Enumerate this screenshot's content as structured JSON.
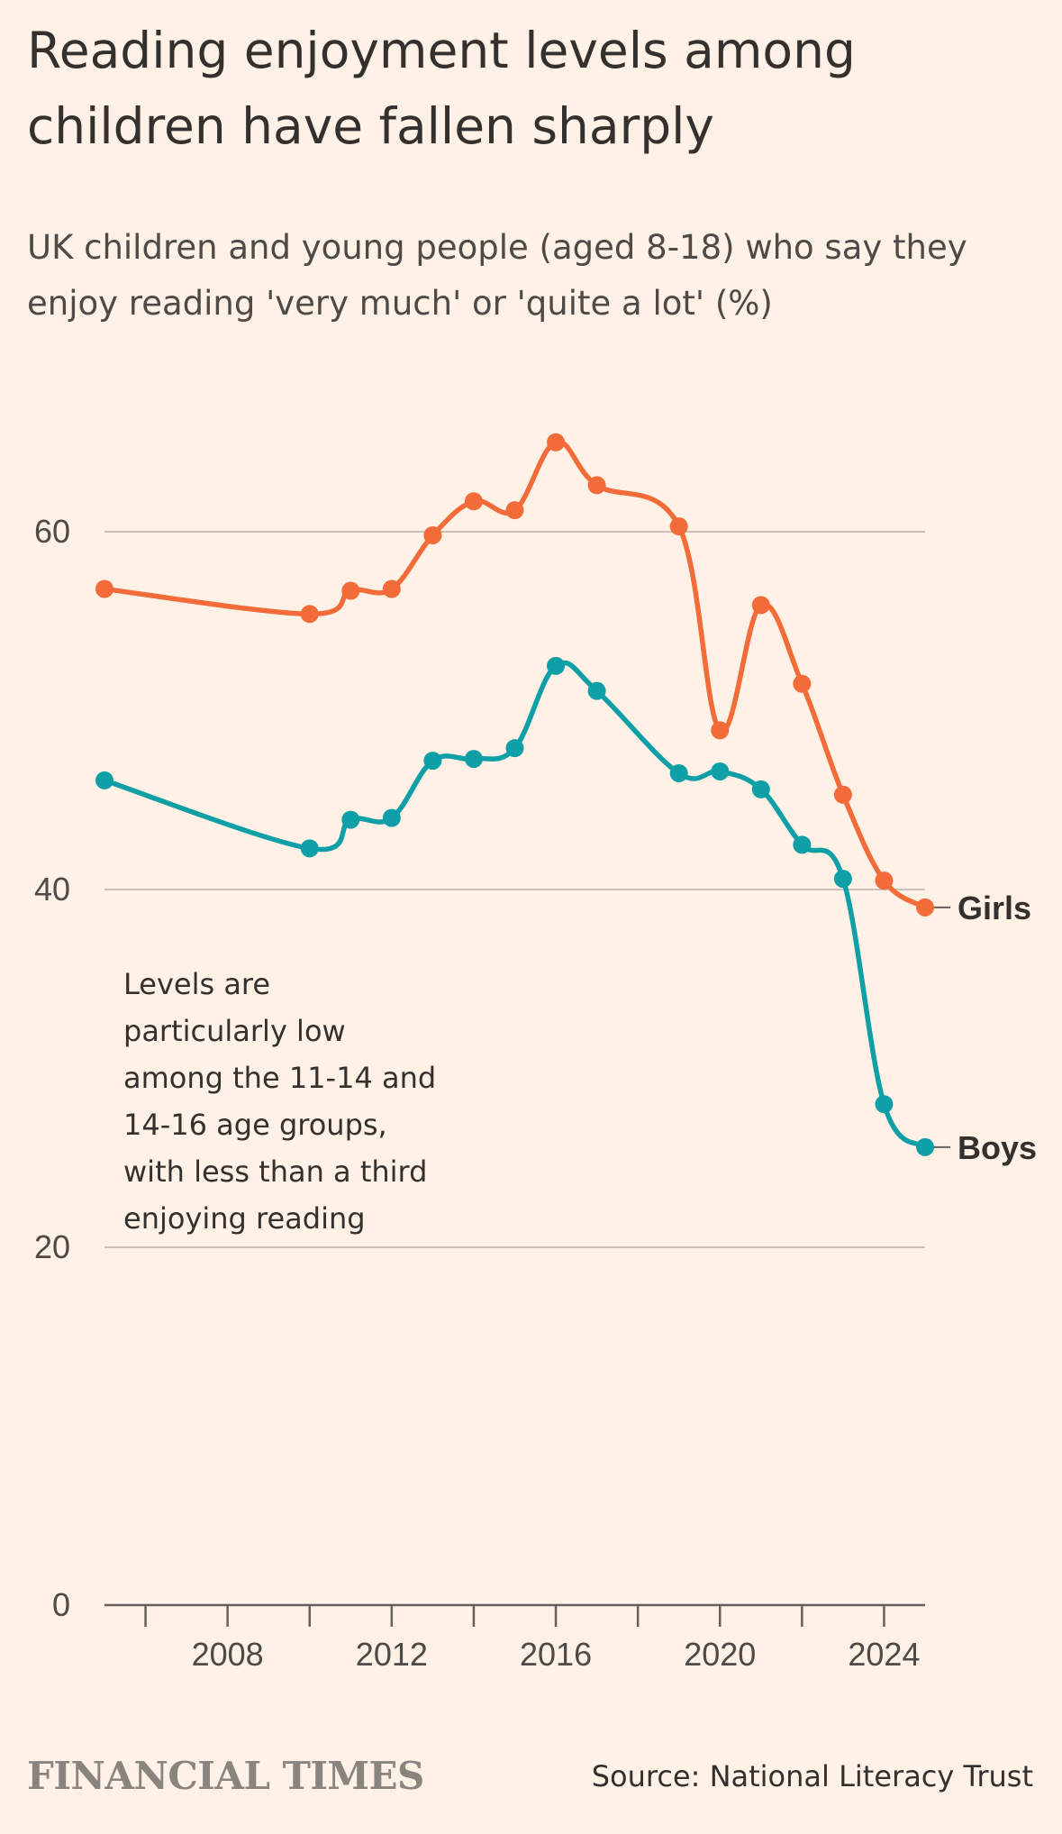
{
  "header": {
    "title": "Reading enjoyment levels among children have fallen sharply",
    "subtitle": "UK children and young people (aged 8-18) who say they enjoy reading 'very much' or 'quite a lot' (%)"
  },
  "annotation": {
    "lines": [
      "Levels are",
      "particularly low",
      "among the 11-14 and",
      "14-16 age groups,",
      "with less than a third",
      "enjoying reading"
    ]
  },
  "footer": {
    "brand": "FINANCIAL TIMES",
    "source": "Source: National Literacy Trust"
  },
  "colors": {
    "background": "#fff1e5",
    "girls": "#f26b38",
    "boys": "#0f9fa6",
    "gridline": "#ccc1b7",
    "axis": "#66605c"
  },
  "chart_data": {
    "type": "line",
    "title": "Reading enjoyment levels among children have fallen sharply",
    "subtitle": "UK children and young people (aged 8-18) who say they enjoy reading 'very much' or 'quite a lot' (%)",
    "xlim": [
      2005,
      2025
    ],
    "ylim": [
      0,
      60
    ],
    "yticks": [
      0,
      20,
      40,
      60
    ],
    "xticks": [
      2008,
      2012,
      2016,
      2020,
      2024
    ],
    "xlabel": "",
    "ylabel": "",
    "grid": true,
    "series": [
      {
        "name": "Girls",
        "x": [
          2005,
          2010,
          2011,
          2012,
          2013,
          2014,
          2015,
          2016,
          2017,
          2019,
          2020,
          2021,
          2022,
          2023,
          2024,
          2025
        ],
        "values": [
          56.8,
          55.4,
          56.7,
          56.8,
          59.8,
          61.7,
          61.2,
          65.0,
          62.6,
          60.3,
          48.9,
          55.9,
          51.5,
          45.3,
          40.5,
          39.0
        ]
      },
      {
        "name": "Boys",
        "x": [
          2005,
          2010,
          2011,
          2012,
          2013,
          2014,
          2015,
          2016,
          2017,
          2019,
          2020,
          2021,
          2022,
          2023,
          2024,
          2025
        ],
        "values": [
          46.1,
          42.3,
          43.9,
          44.0,
          47.2,
          47.3,
          47.9,
          52.5,
          51.1,
          46.5,
          46.6,
          45.6,
          42.5,
          40.6,
          28.0,
          25.6
        ]
      }
    ]
  }
}
